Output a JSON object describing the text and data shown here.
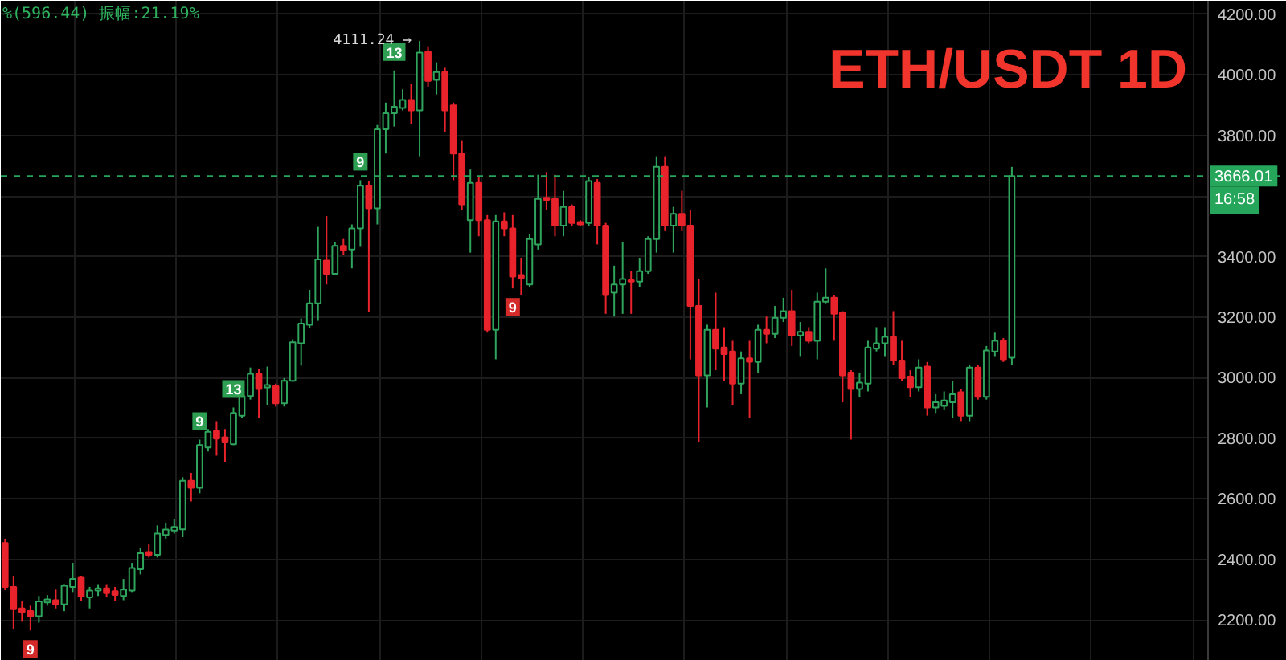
{
  "chart_data": {
    "type": "candlestick",
    "title": "ETH/USDT 1D",
    "subtitle": "%(596.44)  振幅:21.19%",
    "categories": [
      null,
      null,
      null,
      null,
      null,
      null,
      null,
      null,
      null,
      null,
      null,
      null,
      null,
      null,
      null,
      null,
      null,
      null,
      null,
      null,
      null,
      null,
      null,
      null,
      null,
      null,
      null,
      null,
      null,
      null,
      null,
      null,
      null,
      null,
      null,
      null,
      null,
      null,
      null,
      null,
      null,
      null,
      null,
      null,
      null,
      null,
      null,
      null,
      null,
      null,
      null,
      null,
      null,
      null,
      null,
      null,
      null,
      null,
      null,
      null,
      null,
      null,
      null,
      null,
      null,
      null,
      null,
      null,
      null,
      null,
      null,
      null,
      null,
      null,
      null,
      null,
      null,
      null,
      null,
      null,
      null,
      null,
      null,
      null,
      null,
      null,
      null,
      null,
      null,
      null,
      null,
      null,
      null,
      null,
      null,
      null,
      null,
      null,
      null,
      null,
      null,
      null,
      null,
      null,
      null,
      null,
      null,
      null,
      null,
      null,
      null,
      null,
      null,
      null,
      null,
      null,
      null,
      null,
      null,
      null,
      null,
      null,
      null,
      null,
      null,
      null,
      null,
      null,
      null,
      null,
      null,
      null,
      null,
      null,
      null,
      null,
      null,
      null,
      null,
      null,
      null,
      null,
      null,
      null,
      null,
      null,
      null,
      null,
      null,
      null,
      null,
      null
    ],
    "ohlc": [
      [
        2455,
        2469,
        2299,
        2310
      ],
      [
        2310,
        2345,
        2172,
        2236
      ],
      [
        2239,
        2262,
        2195,
        2227
      ],
      [
        2230,
        2248,
        2166,
        2213
      ],
      [
        2213,
        2280,
        2192,
        2262
      ],
      [
        2259,
        2283,
        2248,
        2269
      ],
      [
        2266,
        2301,
        2239,
        2252
      ],
      [
        2252,
        2319,
        2230,
        2314
      ],
      [
        2310,
        2389,
        2293,
        2336
      ],
      [
        2340,
        2345,
        2262,
        2278
      ],
      [
        2275,
        2310,
        2239,
        2298
      ],
      [
        2298,
        2319,
        2280,
        2305
      ],
      [
        2305,
        2319,
        2275,
        2289
      ],
      [
        2296,
        2310,
        2262,
        2283
      ],
      [
        2280,
        2336,
        2266,
        2301
      ],
      [
        2298,
        2389,
        2293,
        2372
      ],
      [
        2368,
        2439,
        2351,
        2421
      ],
      [
        2425,
        2452,
        2407,
        2416
      ],
      [
        2416,
        2513,
        2407,
        2486
      ],
      [
        2481,
        2522,
        2469,
        2499
      ],
      [
        2496,
        2534,
        2486,
        2508
      ],
      [
        2500,
        2672,
        2474,
        2660
      ],
      [
        2660,
        2686,
        2592,
        2637
      ],
      [
        2637,
        2796,
        2619,
        2778
      ],
      [
        2770,
        2831,
        2757,
        2822
      ],
      [
        2825,
        2857,
        2743,
        2799
      ],
      [
        2804,
        2831,
        2721,
        2787
      ],
      [
        2781,
        2902,
        2778,
        2884
      ],
      [
        2875,
        2963,
        2866,
        2940
      ],
      [
        2940,
        3034,
        2928,
        3013
      ],
      [
        3013,
        3029,
        2866,
        2963
      ],
      [
        2968,
        3037,
        2910,
        2976
      ],
      [
        2972,
        2981,
        2905,
        2916
      ],
      [
        2916,
        2999,
        2905,
        2990
      ],
      [
        2990,
        3127,
        2987,
        3117
      ],
      [
        3114,
        3196,
        3040,
        3179
      ],
      [
        3175,
        3290,
        3163,
        3246
      ],
      [
        3246,
        3498,
        3188,
        3391
      ],
      [
        3387,
        3534,
        3308,
        3343
      ],
      [
        3343,
        3449,
        3339,
        3435
      ],
      [
        3435,
        3458,
        3405,
        3421
      ],
      [
        3423,
        3506,
        3361,
        3493
      ],
      [
        3493,
        3652,
        3432,
        3634
      ],
      [
        3634,
        3650,
        3216,
        3559
      ],
      [
        3559,
        3834,
        3506,
        3820
      ],
      [
        3820,
        3908,
        3740,
        3873
      ],
      [
        3873,
        4014,
        3829,
        3894
      ],
      [
        3890,
        3952,
        3882,
        3917
      ],
      [
        3917,
        3970,
        3838,
        3882
      ],
      [
        3882,
        4111.24,
        3731,
        4073
      ],
      [
        4076,
        4094,
        3961,
        3980
      ],
      [
        3983,
        4041,
        3935,
        4009
      ],
      [
        4009,
        4023,
        3811,
        3882
      ],
      [
        3899,
        3908,
        3652,
        3740
      ],
      [
        3740,
        3784,
        3555,
        3572
      ],
      [
        3520,
        3687,
        3413,
        3643
      ],
      [
        3643,
        3661,
        3467,
        3520
      ],
      [
        3520,
        3537,
        3149,
        3158
      ],
      [
        3158,
        3537,
        3061,
        3516
      ],
      [
        3516,
        3546,
        3467,
        3493
      ],
      [
        3493,
        3537,
        3295,
        3334
      ],
      [
        3339,
        3396,
        3273,
        3329
      ],
      [
        3308,
        3475,
        3299,
        3458
      ],
      [
        3440,
        3670,
        3423,
        3590
      ],
      [
        3594,
        3679,
        3555,
        3587
      ],
      [
        3590,
        3670,
        3467,
        3502
      ],
      [
        3502,
        3617,
        3467,
        3564
      ],
      [
        3564,
        3572,
        3502,
        3511
      ],
      [
        3514,
        3520,
        3500,
        3506
      ],
      [
        3511,
        3661,
        3502,
        3649
      ],
      [
        3643,
        3656,
        3440,
        3502
      ],
      [
        3502,
        3511,
        3211,
        3273
      ],
      [
        3281,
        3370,
        3202,
        3308
      ],
      [
        3308,
        3449,
        3211,
        3326
      ],
      [
        3322,
        3352,
        3211,
        3317
      ],
      [
        3317,
        3396,
        3299,
        3352
      ],
      [
        3352,
        3467,
        3343,
        3458
      ],
      [
        3458,
        3731,
        3413,
        3696
      ],
      [
        3696,
        3731,
        3484,
        3502
      ],
      [
        3502,
        3564,
        3413,
        3541
      ],
      [
        3541,
        3617,
        3484,
        3502
      ],
      [
        3502,
        3555,
        3061,
        3237
      ],
      [
        3237,
        3326,
        2787,
        3008
      ],
      [
        3008,
        3175,
        2902,
        3158
      ],
      [
        3158,
        3281,
        3025,
        3096
      ],
      [
        3100,
        3167,
        2990,
        3078
      ],
      [
        3087,
        3122,
        2910,
        2981
      ],
      [
        2981,
        3087,
        2946,
        3064
      ],
      [
        3064,
        3122,
        2866,
        3053
      ],
      [
        3052,
        3175,
        3016,
        3158
      ],
      [
        3158,
        3202,
        3114,
        3145
      ],
      [
        3145,
        3237,
        3131,
        3198
      ],
      [
        3198,
        3264,
        3184,
        3220
      ],
      [
        3220,
        3290,
        3105,
        3140
      ],
      [
        3140,
        3184,
        3069,
        3152
      ],
      [
        3152,
        3167,
        3114,
        3122
      ],
      [
        3122,
        3281,
        3061,
        3251
      ],
      [
        3251,
        3361,
        3246,
        3264
      ],
      [
        3264,
        3273,
        3122,
        3211
      ],
      [
        3216,
        3220,
        2919,
        3008
      ],
      [
        3017,
        3025,
        2796,
        2963
      ],
      [
        2963,
        3016,
        2937,
        2984
      ],
      [
        2981,
        3122,
        2955,
        3100
      ],
      [
        3096,
        3167,
        3087,
        3114
      ],
      [
        3114,
        3167,
        3069,
        3135
      ],
      [
        3135,
        3220,
        3043,
        3057
      ],
      [
        3057,
        3122,
        2990,
        2999
      ],
      [
        3004,
        3025,
        2937,
        2969
      ],
      [
        2969,
        3061,
        2955,
        3034
      ],
      [
        3037,
        3052,
        2875,
        2902
      ],
      [
        2902,
        2946,
        2884,
        2919
      ],
      [
        2907,
        2955,
        2893,
        2925
      ],
      [
        2919,
        2990,
        2866,
        2946
      ],
      [
        2952,
        2963,
        2857,
        2875
      ],
      [
        2875,
        3043,
        2857,
        3034
      ],
      [
        3034,
        3043,
        2928,
        2937
      ],
      [
        2937,
        3105,
        2928,
        3090
      ],
      [
        3087,
        3149,
        3069,
        3122
      ],
      [
        3122,
        3131,
        3052,
        3061
      ],
      [
        3066,
        3696,
        3043,
        3666.01
      ],
      null,
      null,
      null,
      null,
      null,
      null,
      null,
      null,
      null,
      null,
      null,
      null,
      null,
      null,
      null,
      null,
      null,
      null,
      null,
      null,
      null,
      null,
      null,
      null,
      null,
      null,
      null,
      null,
      null,
      null,
      null,
      null
    ],
    "ylim": [
      2066,
      4244
    ],
    "yticks": [
      {
        "value": 2200,
        "label": "2200.00"
      },
      {
        "value": 2400,
        "label": "2400.00"
      },
      {
        "value": 2600,
        "label": "2600.00"
      },
      {
        "value": 2800,
        "label": "2800.00"
      },
      {
        "value": 3000,
        "label": "3000.00"
      },
      {
        "value": 3200,
        "label": "3200.00"
      },
      {
        "value": 3400,
        "label": "3400.00"
      },
      {
        "value": 3600,
        "label": null
      },
      {
        "value": 3800,
        "label": "3800.00"
      },
      {
        "value": 4000,
        "label": "4000.00"
      },
      {
        "value": 4200,
        "label": "4200.00"
      }
    ],
    "grid": true,
    "ref_lines": [
      {
        "axis": "y",
        "value": 3666.01,
        "label": "3666.01",
        "color": "#26a65b",
        "line_style": "dashed"
      }
    ],
    "annotations": [
      {
        "text": "9",
        "y": 2166
      },
      {
        "text": "9",
        "y": 2796
      },
      {
        "text": "13",
        "y": 2902
      },
      {
        "text": "9",
        "y": 3652
      },
      {
        "text": "13",
        "y": 4014
      },
      {
        "text": "9",
        "y": 3295
      },
      "4111.24 →",
      "16:58"
    ]
  }
}
